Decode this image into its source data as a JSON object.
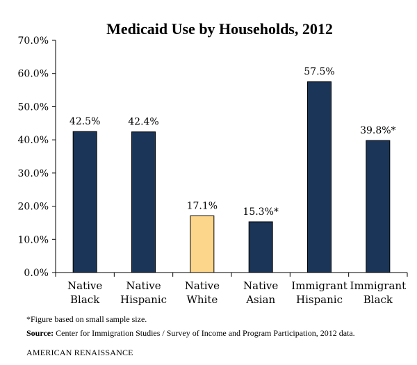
{
  "chart_data": {
    "type": "bar",
    "title": "Medicaid Use by Households, 2012",
    "categories": [
      [
        "Native",
        "Black"
      ],
      [
        "Native",
        "Hispanic"
      ],
      [
        "Native",
        "White"
      ],
      [
        "Native",
        "Asian"
      ],
      [
        "Immigrant",
        "Hispanic"
      ],
      [
        "Immigrant",
        "Black"
      ]
    ],
    "values": [
      42.5,
      42.4,
      17.1,
      15.3,
      57.5,
      39.8
    ],
    "data_labels": [
      "42.5%",
      "42.4%",
      "17.1%",
      "15.3%*",
      "57.5%",
      "39.8%*"
    ],
    "bar_colors": [
      "#1b3558",
      "#1b3558",
      "#fcd68a",
      "#1b3558",
      "#1b3558",
      "#1b3558"
    ],
    "yticks": [
      "0.0%",
      "10.0%",
      "20.0%",
      "30.0%",
      "40.0%",
      "50.0%",
      "60.0%",
      "70.0%"
    ],
    "ylim": [
      0,
      70
    ],
    "grid": false,
    "legend": "none"
  },
  "footnote": "*Figure based on small sample size.",
  "source": {
    "label": "Source:",
    "text": " Center for Immigration Studies / Survey of Income and Program Participation, 2012 data."
  },
  "brand": "AMERICAN RENAISSANCE",
  "colors": {
    "bar_edge": "#000000",
    "axis": "#000000"
  }
}
